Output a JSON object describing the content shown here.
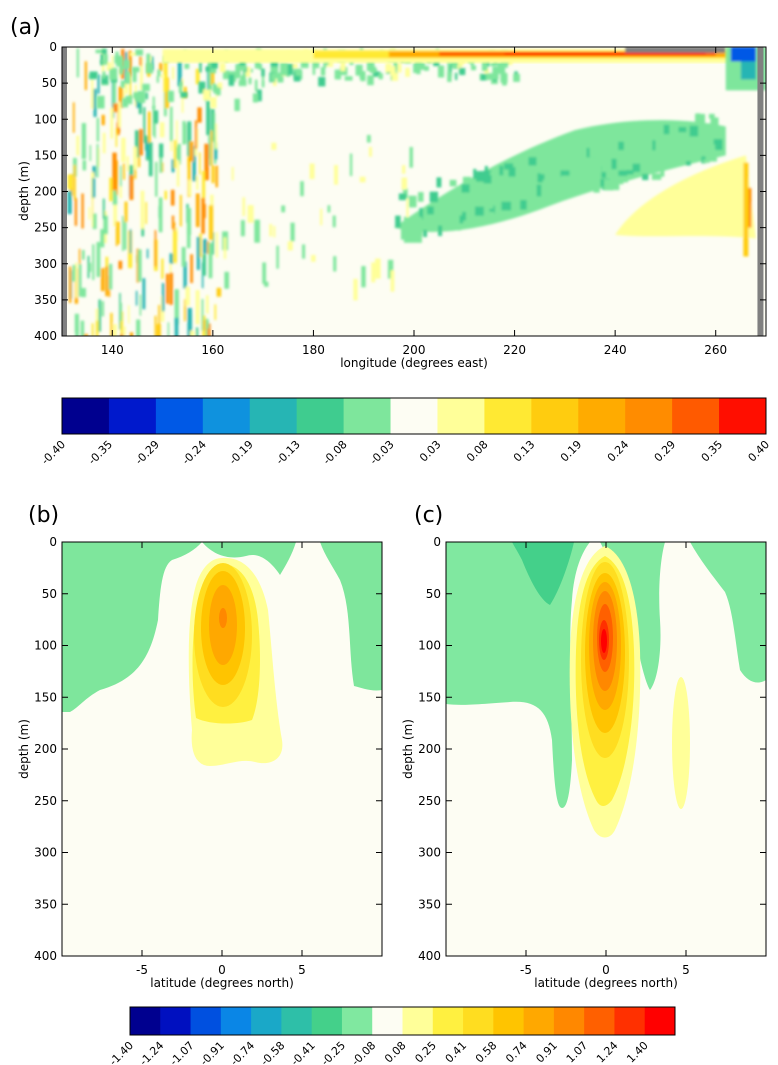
{
  "chart_data": [
    {
      "type": "heatmap",
      "panel_label": "(a)",
      "xlabel": "longitude (degrees east)",
      "ylabel": "depth (m)",
      "xlim": [
        130,
        270
      ],
      "ylim": [
        400,
        0
      ],
      "x_ticks": [
        140,
        160,
        180,
        200,
        220,
        240,
        260
      ],
      "y_ticks": [
        0,
        50,
        100,
        150,
        200,
        250,
        300,
        350,
        400
      ],
      "colorbar": {
        "levels": [
          "-0.40",
          "-0.35",
          "-0.29",
          "-0.24",
          "-0.19",
          "-0.13",
          "-0.08",
          "-0.03",
          "0.03",
          "0.08",
          "0.13",
          "0.19",
          "0.24",
          "0.29",
          "0.35",
          "0.40"
        ],
        "colors": [
          "#00008f",
          "#0019cc",
          "#0059e6",
          "#0f92de",
          "#26b5b4",
          "#3fcc8f",
          "#7ee69c",
          "#fdfdf3",
          "#ffff99",
          "#ffe933",
          "#ffcc0f",
          "#ffab00",
          "#ff8c00",
          "#ff5a00",
          "#ff0e00"
        ]
      },
      "features": [
        {
          "name": "surface warm band",
          "x": [
            190,
            266
          ],
          "depth": [
            0,
            20
          ],
          "value_range": [
            0.13,
            0.4
          ]
        },
        {
          "name": "cold tongue band",
          "x": [
            195,
            262
          ],
          "depth": [
            100,
            260
          ],
          "value": -0.08
        },
        {
          "name": "western noisy region",
          "x": [
            130,
            160
          ],
          "depth": [
            0,
            400
          ],
          "value_range": [
            -0.19,
            0.29
          ]
        },
        {
          "name": "eastern warm patch",
          "x": [
            240,
            268
          ],
          "depth": [
            150,
            260
          ],
          "value": 0.08
        }
      ]
    },
    {
      "type": "heatmap",
      "panel_label": "(b)",
      "xlabel": "latitude (degrees north)",
      "ylabel": "depth (m)",
      "xlim": [
        -10,
        10
      ],
      "ylim": [
        400,
        0
      ],
      "x_ticks": [
        -5,
        0,
        5
      ],
      "y_ticks": [
        0,
        50,
        100,
        150,
        200,
        250,
        300,
        350,
        400
      ],
      "features": [
        {
          "name": "positive core",
          "lat": 0,
          "depth": 95,
          "max": 0.91,
          "extent_depth": [
            25,
            215
          ]
        },
        {
          "name": "negative west lobe",
          "lat": [
            -10,
            -2
          ],
          "depth": [
            0,
            165
          ],
          "value": -0.25
        },
        {
          "name": "negative east lobe",
          "lat": [
            6,
            10
          ],
          "depth": [
            0,
            140
          ],
          "value": -0.25
        }
      ]
    },
    {
      "type": "heatmap",
      "panel_label": "(c)",
      "xlabel": "latitude (degrees north)",
      "ylabel": "depth (m)",
      "xlim": [
        -10,
        10
      ],
      "ylim": [
        400,
        0
      ],
      "x_ticks": [
        -5,
        0,
        5
      ],
      "y_ticks": [
        0,
        50,
        100,
        150,
        200,
        250,
        300,
        350,
        400
      ],
      "features": [
        {
          "name": "positive core",
          "lat": 0,
          "depth": 100,
          "max": 1.4,
          "extent_depth": [
            10,
            285
          ]
        },
        {
          "name": "negative west lobe",
          "lat": [
            -10,
            -2
          ],
          "depth": [
            0,
            255
          ],
          "value": -0.25
        },
        {
          "name": "negative east lobe",
          "lat": [
            3,
            10
          ],
          "depth": [
            0,
            135
          ],
          "value": -0.25
        },
        {
          "name": "weak positive patch",
          "lat": 5,
          "depth": [
            130,
            258
          ],
          "value": 0.08
        }
      ],
      "colorbar": {
        "levels": [
          "-1.40",
          "-1.24",
          "-1.07",
          "-0.91",
          "-0.74",
          "-0.58",
          "-0.41",
          "-0.25",
          "-0.08",
          "0.08",
          "0.25",
          "0.41",
          "0.58",
          "0.74",
          "0.91",
          "1.07",
          "1.24",
          "1.40"
        ],
        "colors": [
          "#00008f",
          "#0010c0",
          "#0050e0",
          "#0a86e6",
          "#1aa8c8",
          "#2ebfa8",
          "#44d08a",
          "#80e8a0",
          "#fdfdf3",
          "#ffff99",
          "#fff040",
          "#ffdd20",
          "#ffc400",
          "#ffa800",
          "#ff8800",
          "#ff6000",
          "#ff3000",
          "#ff0000"
        ]
      }
    }
  ]
}
